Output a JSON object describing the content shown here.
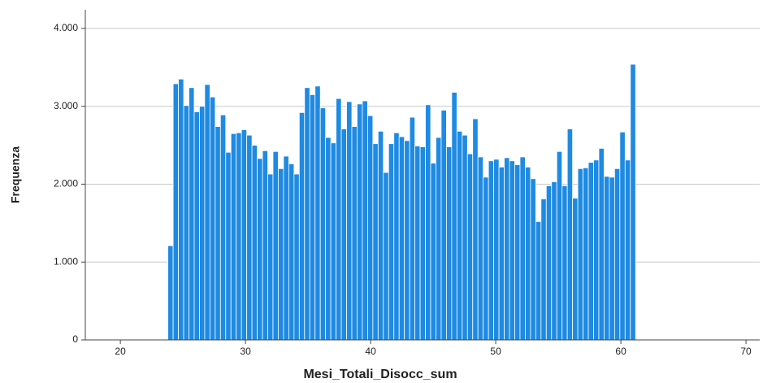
{
  "chart_data": {
    "type": "histogram",
    "x_label": "Mesi_Totali_Disocc_sum",
    "y_label": "Frequenza",
    "color": "#1e8ae2",
    "grid": true,
    "bins": [
      23.8,
      24.22,
      24.64,
      25.06,
      25.48,
      25.9,
      26.32,
      26.74,
      27.16,
      27.58,
      28.0,
      28.42,
      28.84,
      29.26,
      29.68,
      30.1,
      30.52,
      30.94,
      31.36,
      31.78,
      32.2,
      32.62,
      33.04,
      33.46,
      33.88,
      34.3,
      34.72,
      35.14,
      35.56,
      35.98,
      36.4,
      36.82,
      37.24,
      37.66,
      38.08,
      38.5,
      38.92,
      39.34,
      39.76,
      40.18,
      40.6,
      41.02,
      41.44,
      41.86,
      42.28,
      42.7,
      43.12,
      43.54,
      43.96,
      44.38,
      44.8,
      45.22,
      45.64,
      46.06,
      46.48,
      46.9,
      47.32,
      47.74,
      48.16,
      48.58,
      49.0,
      49.42,
      49.84,
      50.26,
      50.68,
      51.1,
      51.52,
      51.94,
      52.36,
      52.78,
      53.2,
      53.62,
      54.04,
      54.46,
      54.88,
      55.3,
      55.72,
      56.14,
      56.56,
      56.98,
      57.4,
      57.82,
      58.24,
      58.66,
      59.08,
      59.5,
      59.92,
      60.34,
      60.76,
      61.18
    ],
    "counts": [
      1210,
      3290,
      3350,
      3010,
      3240,
      2930,
      3000,
      3280,
      3120,
      2740,
      2890,
      2410,
      2650,
      2660,
      2700,
      2630,
      2500,
      2330,
      2430,
      2130,
      2420,
      2200,
      2360,
      2260,
      2130,
      2920,
      3240,
      3150,
      3260,
      2980,
      2600,
      2530,
      3100,
      2710,
      3060,
      2740,
      3030,
      3070,
      2880,
      2520,
      2680,
      2150,
      2520,
      2660,
      2610,
      2560,
      2860,
      2490,
      2480,
      3020,
      2270,
      2600,
      2950,
      2480,
      3180,
      2680,
      2630,
      2390,
      2840,
      2350,
      2090,
      2300,
      2320,
      2220,
      2340,
      2300,
      2250,
      2350,
      2220,
      2070,
      1520,
      1810,
      1980,
      2030,
      2420,
      1980,
      2710,
      1820,
      2200,
      2210,
      2280,
      2310,
      2460,
      2100,
      2090,
      2200,
      2670,
      2310,
      3540
    ],
    "xlim": [
      17.2,
      71.1
    ],
    "xticks": [
      20,
      30,
      40,
      50,
      60,
      70
    ],
    "ylim": [
      0,
      4240
    ],
    "yticks": [
      0,
      {
        "value": 1000,
        "label": "1.000"
      },
      {
        "value": 2000,
        "label": "2.000"
      },
      {
        "value": 3000,
        "label": "3.000"
      },
      {
        "value": 4000,
        "label": "4.000"
      }
    ]
  }
}
